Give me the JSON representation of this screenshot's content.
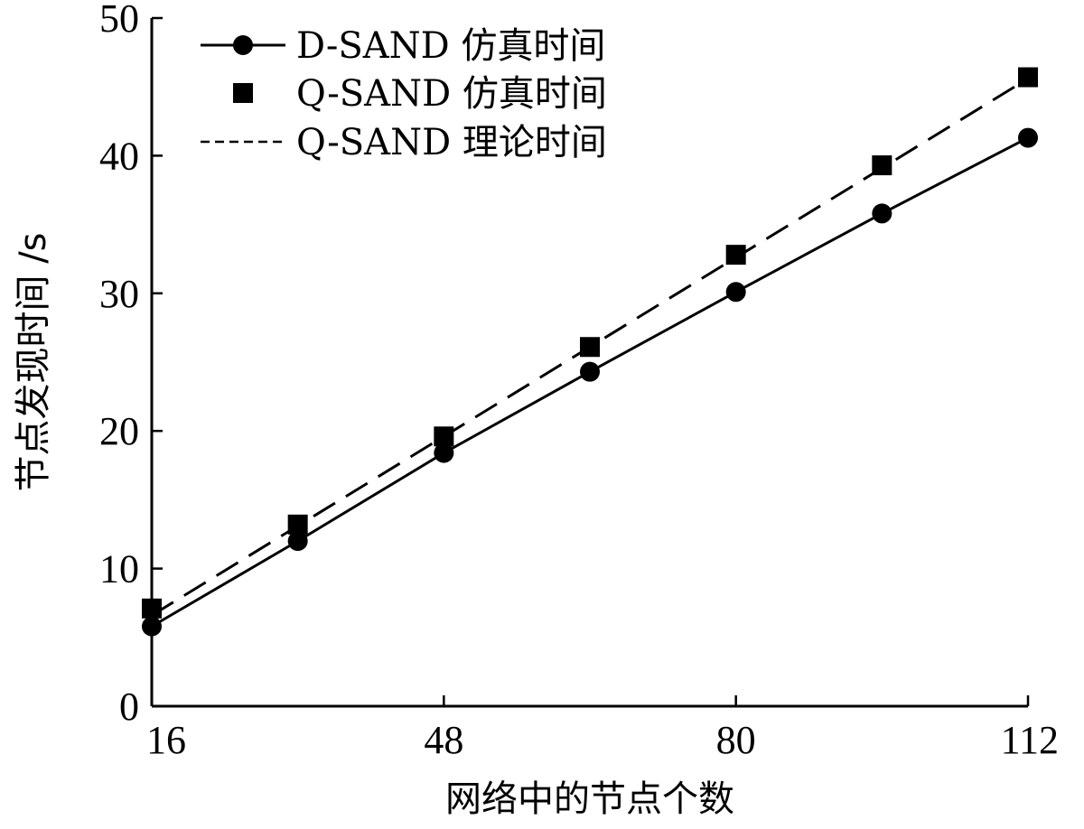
{
  "chart_data": {
    "type": "line",
    "x": [
      16,
      32,
      48,
      64,
      80,
      96,
      112
    ],
    "xlim": [
      16,
      112
    ],
    "xticks": [
      16,
      48,
      80,
      112
    ],
    "ylim": [
      0,
      50
    ],
    "yticks": [
      0,
      10,
      20,
      30,
      40,
      50
    ],
    "xlabel": "网络中的节点个数",
    "ylabel": "节点发现时间 /s",
    "grid": false,
    "legend_position": "top-left",
    "series": [
      {
        "name": "D-SAND 仿真时间",
        "values": [
          5.8,
          12.0,
          18.4,
          24.3,
          30.1,
          35.8,
          41.3
        ],
        "marker": "circle",
        "line": "solid",
        "color": "#000000"
      },
      {
        "name": "Q-SAND 仿真时间",
        "values": [
          7.1,
          13.2,
          19.6,
          26.1,
          32.8,
          39.3,
          45.7
        ],
        "marker": "square",
        "line": "none",
        "color": "#000000"
      },
      {
        "name": "Q-SAND 理论时间",
        "values": [
          6.6,
          13.1,
          19.6,
          26.1,
          32.6,
          39.1,
          45.6
        ],
        "marker": "none",
        "line": "dashed",
        "color": "#000000"
      }
    ]
  }
}
